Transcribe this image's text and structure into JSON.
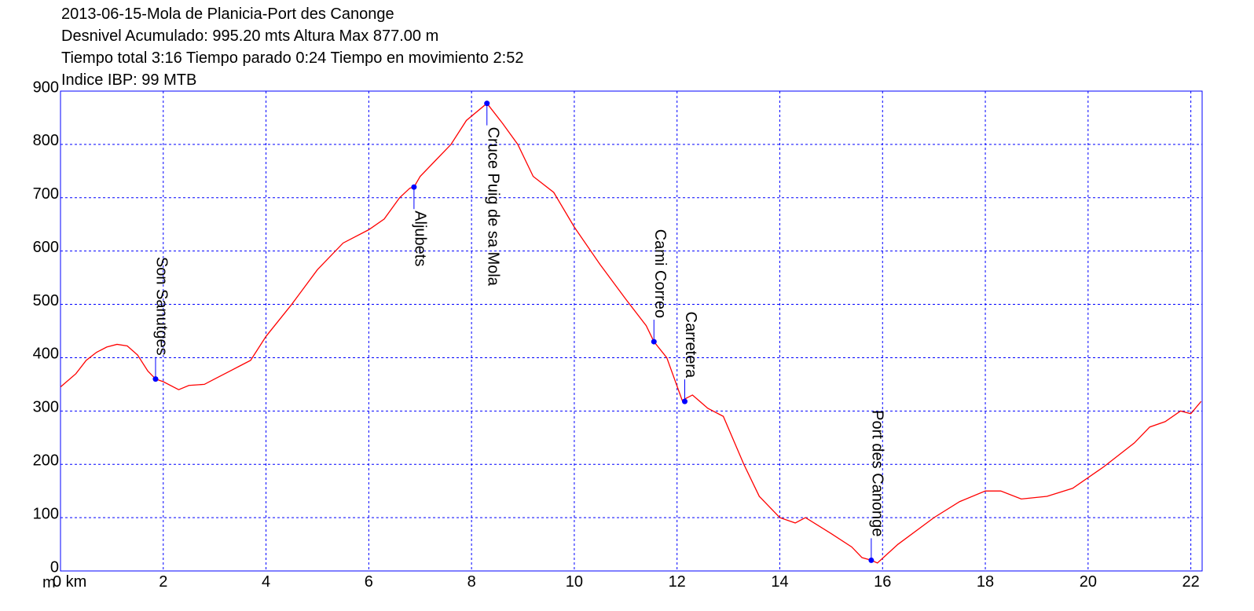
{
  "chart_data": {
    "type": "line",
    "title": "2013-06-15-Mola de Planicia-Port des Canonge",
    "subtitle": [
      "Desnivel Acumulado: 995.20 mts  Altura Max 877.00 m",
      "Tiempo total 3:16 Tiempo parado 0:24 Tiempo en movimiento 2:52",
      "Indice IBP: 99 MTB"
    ],
    "y_label": "m",
    "color": "#ff0000",
    "x": [
      0,
      0.3,
      0.5,
      0.7,
      0.9,
      1.1,
      1.3,
      1.5,
      1.7,
      1.85,
      2.0,
      2.3,
      2.5,
      2.8,
      3.0,
      3.3,
      3.5,
      3.7,
      4.0,
      4.5,
      5.0,
      5.5,
      6.0,
      6.3,
      6.6,
      6.8,
      6.88,
      7.0,
      7.3,
      7.6,
      7.9,
      8.3,
      8.6,
      8.9,
      9.2,
      9.6,
      10.0,
      10.5,
      11.0,
      11.4,
      11.55,
      11.8,
      12.1,
      12.3,
      12.6,
      12.9,
      13.3,
      13.6,
      14.0,
      14.3,
      14.5,
      15.0,
      15.4,
      15.6,
      15.78,
      15.9,
      16.3,
      17.0,
      17.5,
      18.0,
      18.3,
      18.7,
      19.2,
      19.7,
      20.3,
      20.9,
      21.2,
      21.5,
      21.8,
      22.0,
      22.2
    ],
    "values": [
      345,
      370,
      395,
      410,
      420,
      425,
      422,
      405,
      375,
      360,
      355,
      340,
      348,
      350,
      360,
      375,
      385,
      395,
      440,
      500,
      565,
      615,
      640,
      660,
      700,
      718,
      720,
      740,
      770,
      800,
      845,
      877,
      840,
      800,
      740,
      710,
      645,
      575,
      510,
      460,
      430,
      400,
      320,
      330,
      305,
      290,
      200,
      140,
      100,
      90,
      100,
      70,
      45,
      25,
      20,
      15,
      50,
      100,
      130,
      150,
      150,
      135,
      140,
      155,
      195,
      240,
      270,
      280,
      300,
      295,
      318
    ],
    "waypoints": [
      {
        "label": "Son Sanutges",
        "x": 1.85,
        "y": 360,
        "placement": "above"
      },
      {
        "label": "Aljubets",
        "x": 6.88,
        "y": 720,
        "placement": "below"
      },
      {
        "label": "Cruce Puig de sa Mola",
        "x": 8.3,
        "y": 877,
        "placement": "below"
      },
      {
        "label": "Cami Correo",
        "x": 11.55,
        "y": 430,
        "placement": "above"
      },
      {
        "label": "Carretera",
        "x": 12.15,
        "y": 318,
        "placement": "above"
      },
      {
        "label": "Port des Canonge",
        "x": 15.78,
        "y": 20,
        "placement": "above"
      }
    ],
    "waypoint_color": "#0000ff",
    "grid": true,
    "xlim": [
      0,
      22.22
    ],
    "ylim": [
      0,
      900
    ],
    "xticks": [
      {
        "value": 0,
        "label": "0 km"
      },
      2,
      4,
      6,
      8,
      10,
      12,
      14,
      16,
      18,
      20,
      22
    ],
    "yticks": [
      0,
      100,
      200,
      300,
      400,
      500,
      600,
      700,
      800,
      900
    ]
  }
}
